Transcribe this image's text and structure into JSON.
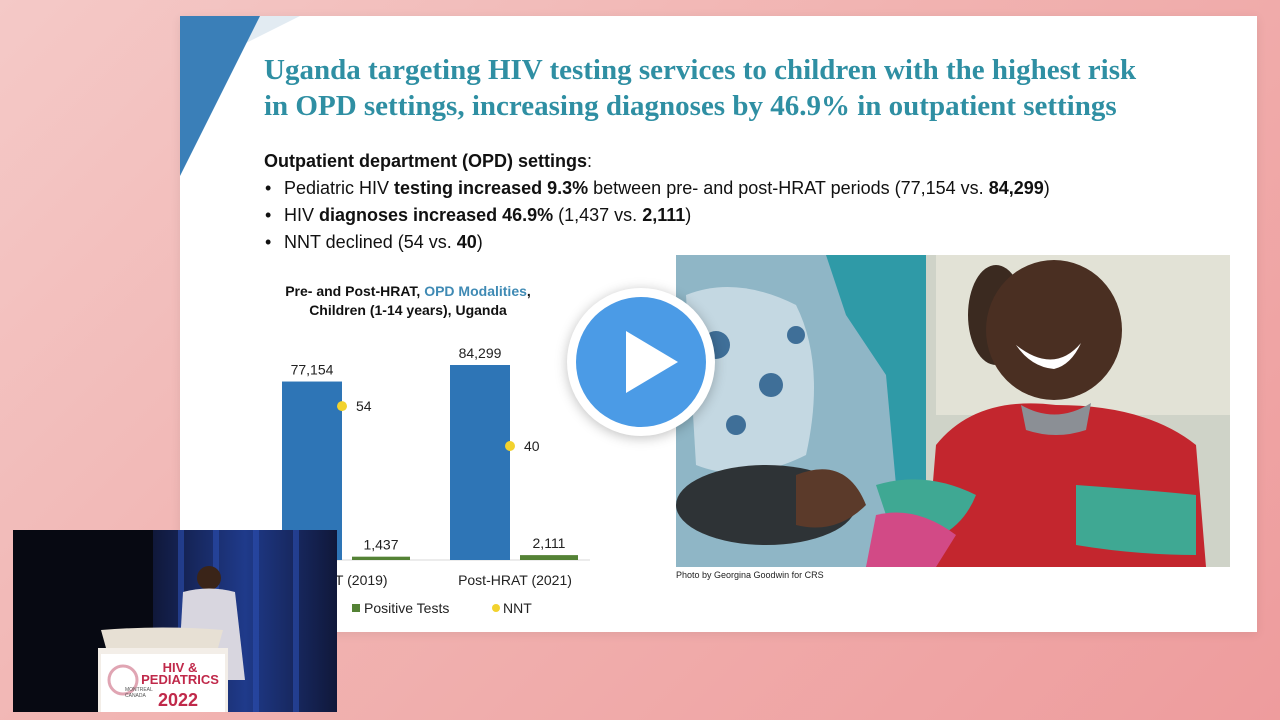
{
  "slide": {
    "title_line1": "Uganda targeting HIV testing services to children with the highest risk",
    "title_line2": "in OPD settings, increasing diagnoses by 46.9% in outpatient settings",
    "section_heading": "Outpatient department (OPD) settings",
    "section_colon": ":",
    "bullets": [
      {
        "pre": "Pediatric HIV ",
        "b1": "testing increased 9.3%",
        "mid": " between pre- and post-HRAT periods (77,154 vs. ",
        "b2": "84,299",
        "post": ")"
      },
      {
        "pre": "HIV ",
        "b1": "diagnoses increased 46.9%",
        "mid": " (1,437 vs. ",
        "b2": "2,111",
        "post": ")"
      },
      {
        "pre": "NNT declined (54 vs. ",
        "b1": "",
        "mid": "",
        "b2": "40",
        "post": ")"
      }
    ],
    "photo_credit": "Photo by Georgina Goodwin for CRS"
  },
  "chart_title": {
    "line1_pre": "Pre- and Post-HRAT, ",
    "line1_accent": "OPD Modalities",
    "line1_post": ",",
    "line2": "Children (1-14 years), Uganda"
  },
  "chart_data": {
    "type": "bar",
    "categories": [
      "Pre-HRAT (2019)",
      "Post-HRAT (2021)"
    ],
    "category_labels_visible": [
      "HRAT (2019)",
      "Post-HRAT (2021)"
    ],
    "series": [
      {
        "name": "Tests",
        "legend_visible": "ts",
        "values": [
          77154,
          84299
        ],
        "labels": [
          "77,154",
          "84,299"
        ],
        "color": "#2e75b6"
      },
      {
        "name": "Positive Tests",
        "values": [
          1437,
          2111
        ],
        "labels": [
          "1,437",
          "2,111"
        ],
        "color": "#548235"
      },
      {
        "name": "NNT",
        "values": [
          54,
          40
        ],
        "labels": [
          "54",
          "40"
        ],
        "color": "#f2d22e"
      }
    ],
    "ylim": [
      0,
      84299
    ],
    "nnt_range": [
      0,
      100
    ],
    "grid": false,
    "legend_placement": "bottom"
  },
  "conference": {
    "brand_line1": "HIV &",
    "brand_line2": "PEDIATRICS",
    "year": "2022",
    "location": "MONTREAL CANADA"
  },
  "colors": {
    "title": "#2f8fa3",
    "accent": "#3f8ab4",
    "play": "#4b9be6",
    "background": "#f1b3b1"
  },
  "icons": {
    "play": "play-icon"
  }
}
